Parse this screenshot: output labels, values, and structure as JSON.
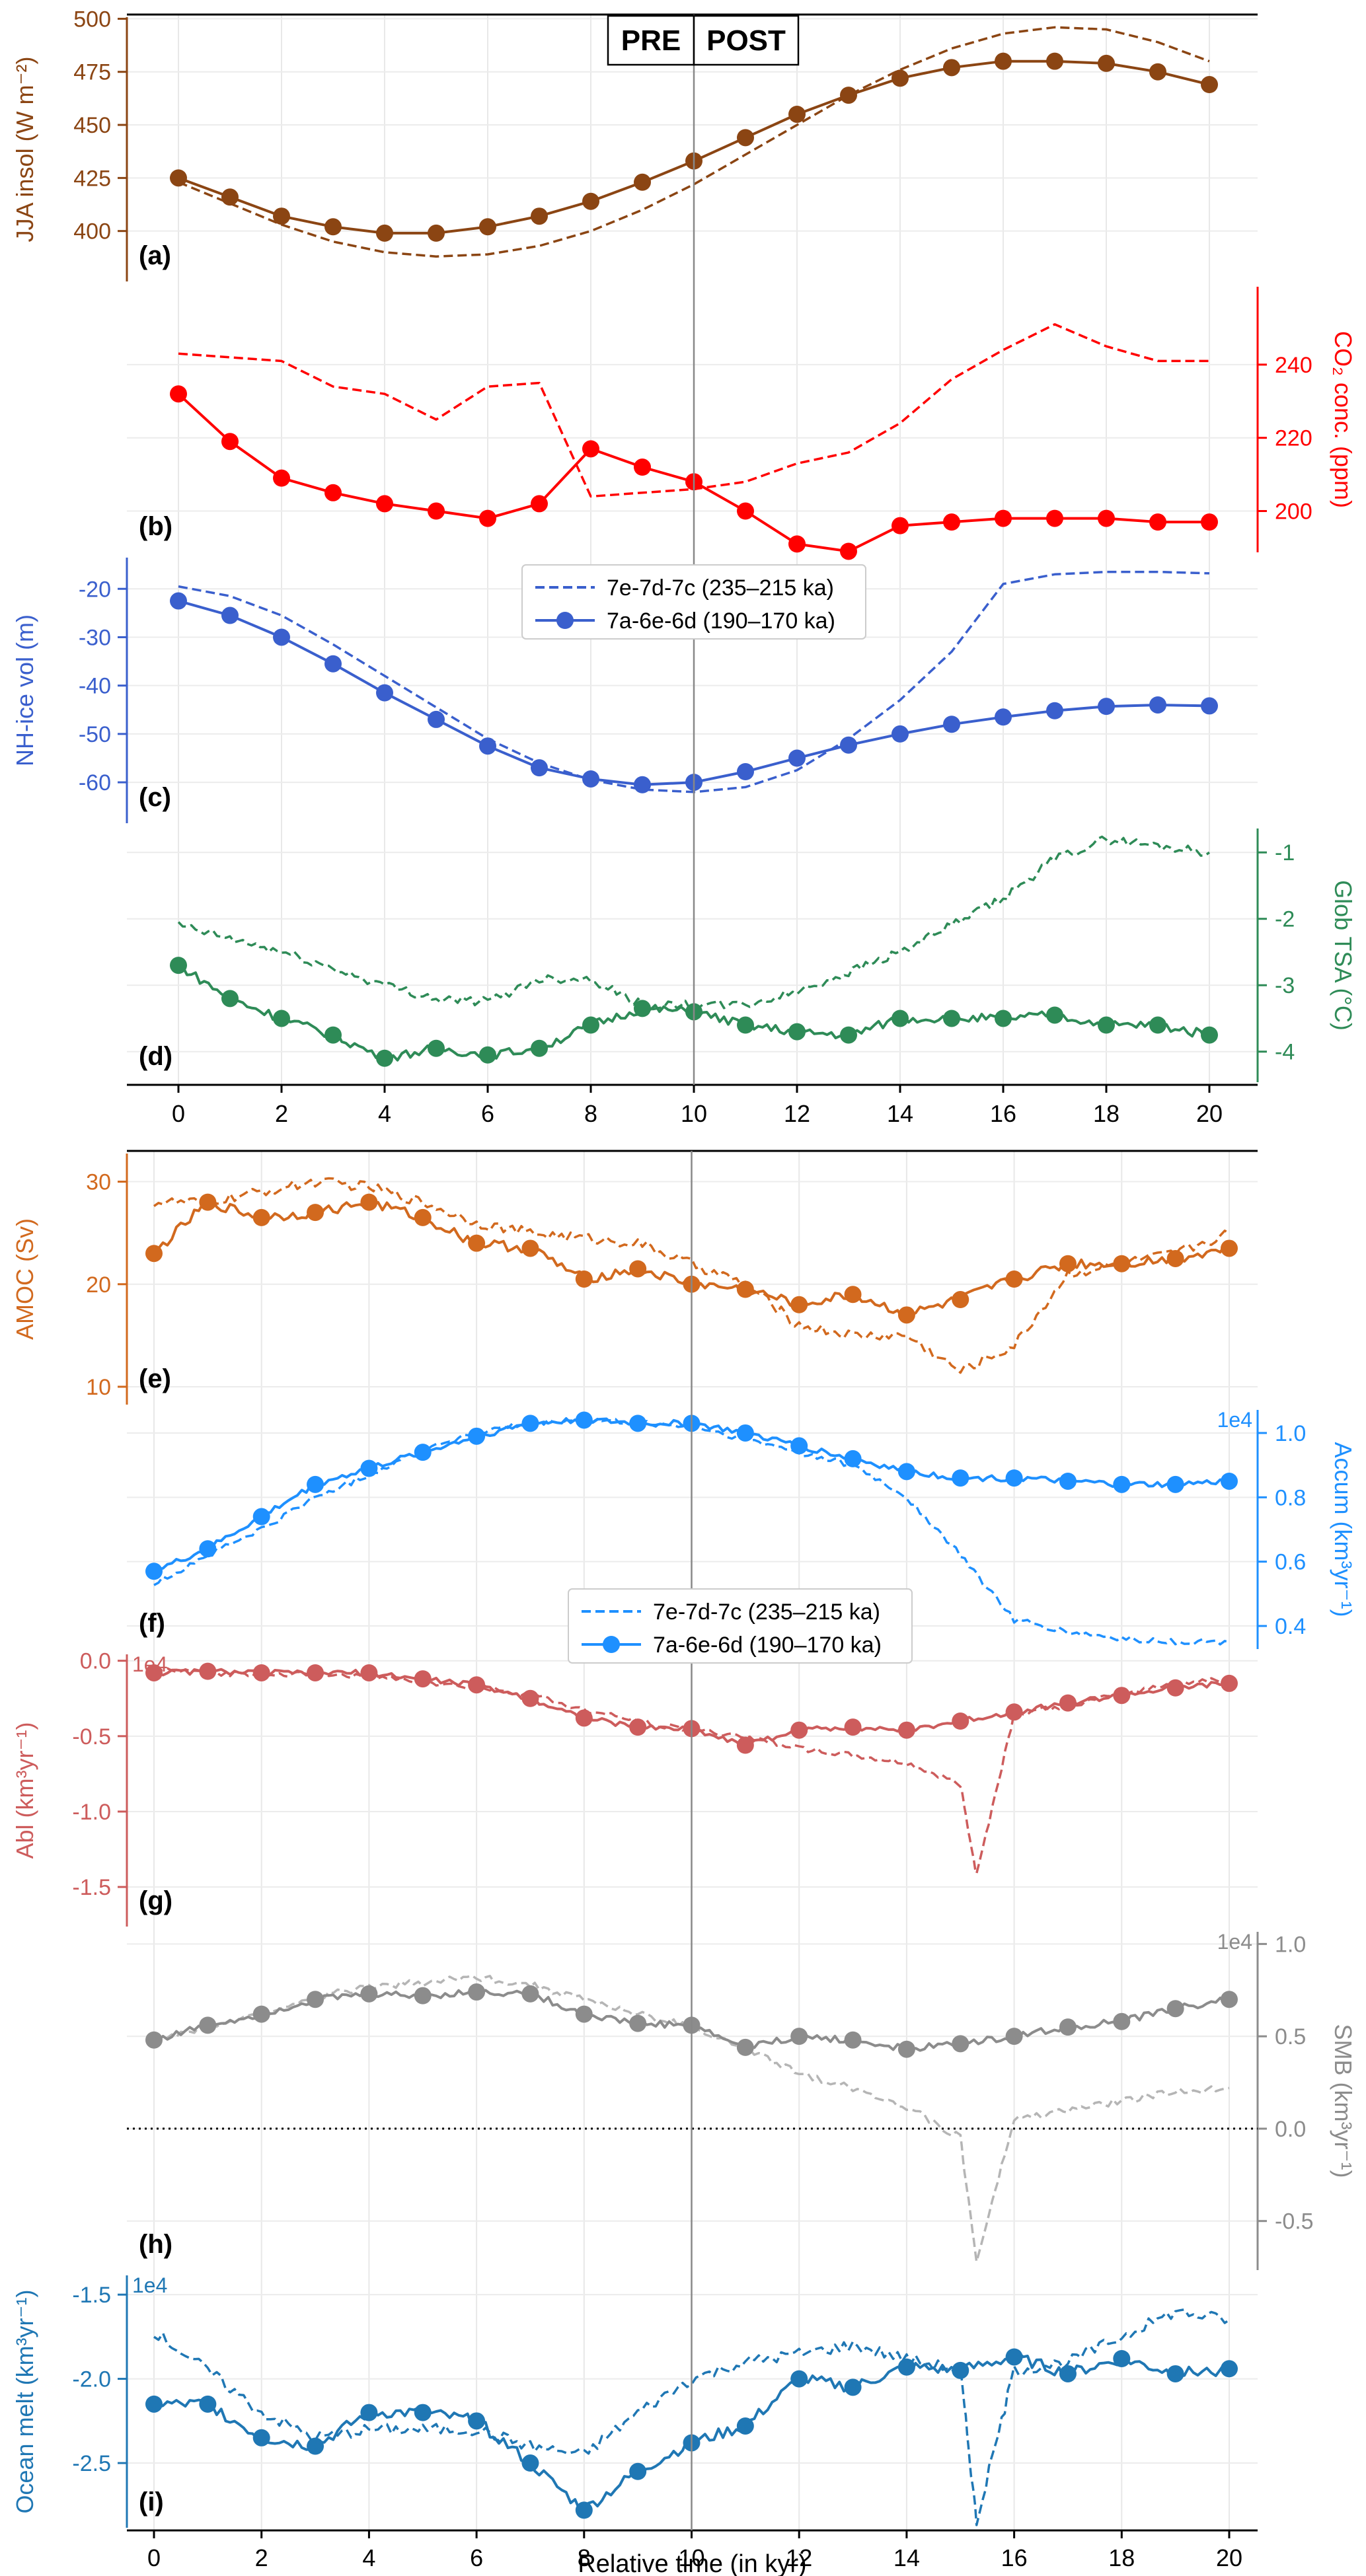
{
  "figure": {
    "pre_label": "PRE",
    "post_label": "POST",
    "xlabel": "Relative time (in kyr)",
    "xticks_top": [
      "0",
      "2",
      "4",
      "6",
      "8",
      "10",
      "12",
      "14",
      "16",
      "18",
      "20"
    ],
    "xticks_bottom": [
      "0",
      "2",
      "4",
      "6",
      "8",
      "10",
      "12",
      "14",
      "16",
      "18",
      "20"
    ],
    "legend_top": [
      {
        "name": "7e-7d-7c (235–215 ka)",
        "style": "dashed"
      },
      {
        "name": "7a-6e-6d (190–170 ka)",
        "style": "solid-marker"
      }
    ],
    "legend_bottom": [
      {
        "name": "7e-7d-7c (235–215 ka)",
        "style": "dashed"
      },
      {
        "name": "7a-6e-6d (190–170 ka)",
        "style": "solid-marker"
      }
    ]
  },
  "chart_data": [
    {
      "panel": "(a)",
      "type": "line",
      "ylabel": "JJA insol (W m⁻²)",
      "color": "#8b4513",
      "ylim": [
        375,
        502
      ],
      "yticks": [
        "400",
        "425",
        "450",
        "475",
        "500"
      ],
      "x": [
        0,
        1,
        2,
        3,
        4,
        5,
        6,
        7,
        8,
        9,
        10,
        11,
        12,
        13,
        14,
        15,
        16,
        17,
        18,
        19,
        20
      ],
      "series": [
        {
          "name": "7a-6e-6d (190–170 ka)",
          "values": [
            425,
            416,
            407,
            402,
            399,
            399,
            402,
            407,
            414,
            423,
            433,
            444,
            455,
            464,
            472,
            477,
            480,
            480,
            479,
            475,
            469
          ]
        },
        {
          "name": "7e-7d-7c (235–215 ka)",
          "values": [
            423,
            413,
            403,
            395,
            390,
            388,
            389,
            393,
            400,
            410,
            422,
            436,
            450,
            464,
            476,
            486,
            493,
            496,
            495,
            489,
            480
          ]
        }
      ]
    },
    {
      "panel": "(b)",
      "type": "line",
      "ylabel": "CO₂ conc. (ppm)",
      "color": "#ff0000",
      "ylim": [
        188,
        262
      ],
      "yticks": [
        "200",
        "220",
        "240"
      ],
      "x": [
        0,
        1,
        2,
        3,
        4,
        5,
        6,
        7,
        8,
        9,
        10,
        11,
        12,
        13,
        14,
        15,
        16,
        17,
        18,
        19,
        20
      ],
      "series": [
        {
          "name": "7a-6e-6d (190–170 ka)",
          "values": [
            232,
            219,
            209,
            205,
            202,
            200,
            198,
            202,
            217,
            212,
            208,
            200,
            191,
            189,
            196,
            197,
            198,
            198,
            198,
            197,
            197
          ]
        },
        {
          "name": "7e-7d-7c (235–215 ka)",
          "values": [
            243,
            242,
            241,
            234,
            232,
            225,
            234,
            235,
            204,
            205,
            206,
            208,
            213,
            216,
            224,
            236,
            244,
            251,
            245,
            241,
            241
          ]
        }
      ]
    },
    {
      "panel": "(c)",
      "type": "line",
      "ylabel": "NH-ice vol (m)",
      "color": "#3a5fcd",
      "ylim": [
        -69,
        -13
      ],
      "yticks": [
        "-20",
        "-30",
        "-40",
        "-50",
        "-60"
      ],
      "x": [
        0,
        1,
        2,
        3,
        4,
        5,
        6,
        7,
        8,
        9,
        10,
        11,
        12,
        13,
        14,
        15,
        16,
        17,
        18,
        19,
        20
      ],
      "series": [
        {
          "name": "7a-6e-6d (190–170 ka)",
          "values": [
            -22.5,
            -25.5,
            -30,
            -35.5,
            -41.5,
            -47,
            -52.5,
            -57,
            -59.3,
            -60.5,
            -60,
            -57.8,
            -55,
            -52.3,
            -50,
            -48,
            -46.5,
            -45.2,
            -44.3,
            -44,
            -44.2
          ]
        },
        {
          "name": "7e-7d-7c (235–215 ka)",
          "values": [
            -19.5,
            -21.5,
            -25.5,
            -31.5,
            -38,
            -44.5,
            -51,
            -56,
            -59.5,
            -61.5,
            -62,
            -61,
            -57.5,
            -51,
            -43,
            -33,
            -19,
            -17,
            -16.5,
            -16.5,
            -16.8
          ]
        }
      ]
    },
    {
      "panel": "(d)",
      "type": "line",
      "ylabel": "Glob TSA (°C)",
      "color": "#2e8b57",
      "ylim": [
        -4.5,
        -0.6
      ],
      "yticks": [
        "-1",
        "-2",
        "-3",
        "-4"
      ],
      "x": [
        0,
        1,
        2,
        3,
        4,
        5,
        6,
        7,
        8,
        9,
        10,
        11,
        12,
        13,
        14,
        15,
        16,
        17,
        18,
        19,
        20
      ],
      "series": [
        {
          "name": "7a-6e-6d (190–170 ka)",
          "values": [
            -2.7,
            -3.2,
            -3.5,
            -3.75,
            -4.1,
            -3.95,
            -4.05,
            -3.95,
            -3.6,
            -3.35,
            -3.4,
            -3.6,
            -3.7,
            -3.75,
            -3.5,
            -3.5,
            -3.5,
            -3.45,
            -3.6,
            -3.6,
            -3.75
          ]
        },
        {
          "name": "7e-7d-7c (235–215 ka)",
          "values": [
            -2.1,
            -2.3,
            -2.5,
            -2.75,
            -3.0,
            -3.2,
            -3.25,
            -2.9,
            -2.9,
            -3.3,
            -3.3,
            -3.3,
            -3.1,
            -2.8,
            -2.5,
            -2.1,
            -1.7,
            -1.1,
            -0.8,
            -0.9,
            -1.0
          ]
        }
      ]
    },
    {
      "panel": "(e)",
      "type": "line",
      "ylabel": "AMOC (Sv)",
      "color": "#d2691e",
      "ylim": [
        8,
        33
      ],
      "yticks": [
        "10",
        "20",
        "30"
      ],
      "x": [
        0,
        1,
        2,
        3,
        4,
        5,
        6,
        7,
        8,
        9,
        10,
        11,
        12,
        13,
        14,
        15,
        16,
        17,
        18,
        19,
        20
      ],
      "series": [
        {
          "name": "7a-6e-6d (190–170 ka)",
          "values": [
            23,
            28,
            26.5,
            27,
            28,
            26.5,
            24,
            23.5,
            20.5,
            21.5,
            20,
            19.5,
            18,
            19,
            17,
            18.5,
            20.5,
            22,
            22,
            22.5,
            23.5
          ]
        },
        {
          "name": "7e-7d-7c (235–215 ka)",
          "values": [
            28,
            28,
            29,
            30,
            29.5,
            28,
            26,
            25,
            24.5,
            24,
            22,
            20,
            16,
            15,
            15,
            11.5,
            14,
            21,
            22,
            23,
            25
          ]
        }
      ]
    },
    {
      "panel": "(f)",
      "type": "line",
      "ylabel": "Accum (km³yr⁻¹)",
      "scale": "1e4",
      "color": "#1e90ff",
      "ylim": [
        0.32,
        1.08
      ],
      "yticks": [
        "0.4",
        "0.6",
        "0.8",
        "1.0"
      ],
      "x": [
        0,
        1,
        2,
        3,
        4,
        5,
        6,
        7,
        8,
        9,
        10,
        11,
        12,
        13,
        14,
        15,
        16,
        17,
        18,
        19,
        20
      ],
      "series": [
        {
          "name": "7a-6e-6d (190–170 ka)",
          "values": [
            0.57,
            0.64,
            0.74,
            0.84,
            0.89,
            0.94,
            0.99,
            1.03,
            1.04,
            1.03,
            1.03,
            1.0,
            0.96,
            0.92,
            0.88,
            0.86,
            0.86,
            0.85,
            0.84,
            0.84,
            0.85
          ]
        },
        {
          "name": "7e-7d-7c (235–215 ka)",
          "values": [
            0.53,
            0.62,
            0.7,
            0.8,
            0.87,
            0.95,
            1.0,
            1.03,
            1.04,
            1.03,
            1.02,
            0.98,
            0.94,
            0.9,
            0.8,
            0.62,
            0.42,
            0.38,
            0.36,
            0.35,
            0.35
          ]
        }
      ]
    },
    {
      "panel": "(g)",
      "type": "line",
      "ylabel": "Abl (km³yr⁻¹)",
      "scale": "1e4",
      "color": "#cd5c5c",
      "ylim": [
        -1.78,
        0.06
      ],
      "yticks": [
        "0.0",
        "-0.5",
        "-1.0",
        "-1.5"
      ],
      "x": [
        0,
        1,
        2,
        3,
        4,
        5,
        6,
        7,
        8,
        9,
        10,
        11,
        12,
        13,
        14,
        15,
        15.3,
        16,
        17,
        18,
        19,
        20
      ],
      "series": [
        {
          "name": "7a-6e-6d (190–170 ka)",
          "x": [
            0,
            1,
            2,
            3,
            4,
            5,
            6,
            7,
            8,
            9,
            10,
            11,
            12,
            13,
            14,
            15,
            16,
            17,
            18,
            19,
            20
          ],
          "values": [
            -0.08,
            -0.07,
            -0.08,
            -0.08,
            -0.08,
            -0.12,
            -0.16,
            -0.25,
            -0.38,
            -0.44,
            -0.45,
            -0.56,
            -0.46,
            -0.44,
            -0.46,
            -0.4,
            -0.34,
            -0.28,
            -0.23,
            -0.18,
            -0.15
          ]
        },
        {
          "name": "7e-7d-7c (235–215 ka)",
          "values": [
            -0.06,
            -0.08,
            -0.09,
            -0.09,
            -0.1,
            -0.14,
            -0.18,
            -0.22,
            -0.33,
            -0.4,
            -0.46,
            -0.5,
            -0.58,
            -0.63,
            -0.68,
            -0.82,
            -1.42,
            -0.35,
            -0.3,
            -0.22,
            -0.15,
            -0.12
          ]
        }
      ]
    },
    {
      "panel": "(h)",
      "type": "line",
      "ylabel": "SMB (km³yr⁻¹)",
      "scale": "1e4",
      "color": "#8c8c8c",
      "ylim": [
        -0.78,
        1.08
      ],
      "yticks": [
        "1.0",
        "0.5",
        "0.0",
        "-0.5"
      ],
      "x": [
        0,
        1,
        2,
        3,
        4,
        5,
        6,
        7,
        8,
        9,
        10,
        11,
        12,
        13,
        14,
        15,
        15.3,
        16,
        17,
        18,
        19,
        20
      ],
      "series": [
        {
          "name": "7a-6e-6d (190–170 ka)",
          "x": [
            0,
            1,
            2,
            3,
            4,
            5,
            6,
            7,
            8,
            9,
            10,
            11,
            12,
            13,
            14,
            15,
            16,
            17,
            18,
            19,
            20
          ],
          "values": [
            0.48,
            0.56,
            0.62,
            0.7,
            0.73,
            0.72,
            0.74,
            0.73,
            0.62,
            0.57,
            0.56,
            0.44,
            0.5,
            0.48,
            0.43,
            0.46,
            0.5,
            0.55,
            0.58,
            0.65,
            0.7
          ]
        },
        {
          "name": "7e-7d-7c (235–215 ka)",
          "values": [
            0.47,
            0.55,
            0.62,
            0.71,
            0.77,
            0.79,
            0.82,
            0.78,
            0.7,
            0.62,
            0.55,
            0.43,
            0.3,
            0.22,
            0.12,
            -0.05,
            -0.72,
            0.05,
            0.1,
            0.15,
            0.2,
            0.22
          ]
        }
      ]
    },
    {
      "panel": "(i)",
      "type": "line",
      "ylabel": "Ocean melt (km³yr⁻¹)",
      "scale": "1e4",
      "color": "#1f77b4",
      "ylim": [
        -2.9,
        -1.37
      ],
      "yticks": [
        "-1.5",
        "-2.0",
        "-2.5"
      ],
      "x": [
        0,
        1,
        2,
        3,
        4,
        5,
        6,
        7,
        8,
        9,
        10,
        11,
        12,
        13,
        14,
        15,
        15.3,
        16,
        17,
        18,
        19,
        20
      ],
      "series": [
        {
          "name": "7a-6e-6d (190–170 ka)",
          "x": [
            0,
            1,
            2,
            3,
            4,
            5,
            6,
            7,
            8,
            9,
            10,
            11,
            12,
            13,
            14,
            15,
            16,
            17,
            18,
            19,
            20
          ],
          "values": [
            -2.15,
            -2.15,
            -2.35,
            -2.4,
            -2.2,
            -2.2,
            -2.25,
            -2.5,
            -2.78,
            -2.55,
            -2.38,
            -2.28,
            -2.0,
            -2.05,
            -1.93,
            -1.95,
            -1.87,
            -1.97,
            -1.88,
            -1.97,
            -1.94
          ]
        },
        {
          "name": "7e-7d-7c (235–215 ka)",
          "values": [
            -1.72,
            -1.95,
            -2.2,
            -2.35,
            -2.3,
            -2.3,
            -2.3,
            -2.4,
            -2.45,
            -2.2,
            -2.0,
            -1.9,
            -1.85,
            -1.8,
            -1.88,
            -1.95,
            -2.85,
            -1.95,
            -1.9,
            -1.75,
            -1.6,
            -1.65
          ]
        }
      ]
    }
  ]
}
